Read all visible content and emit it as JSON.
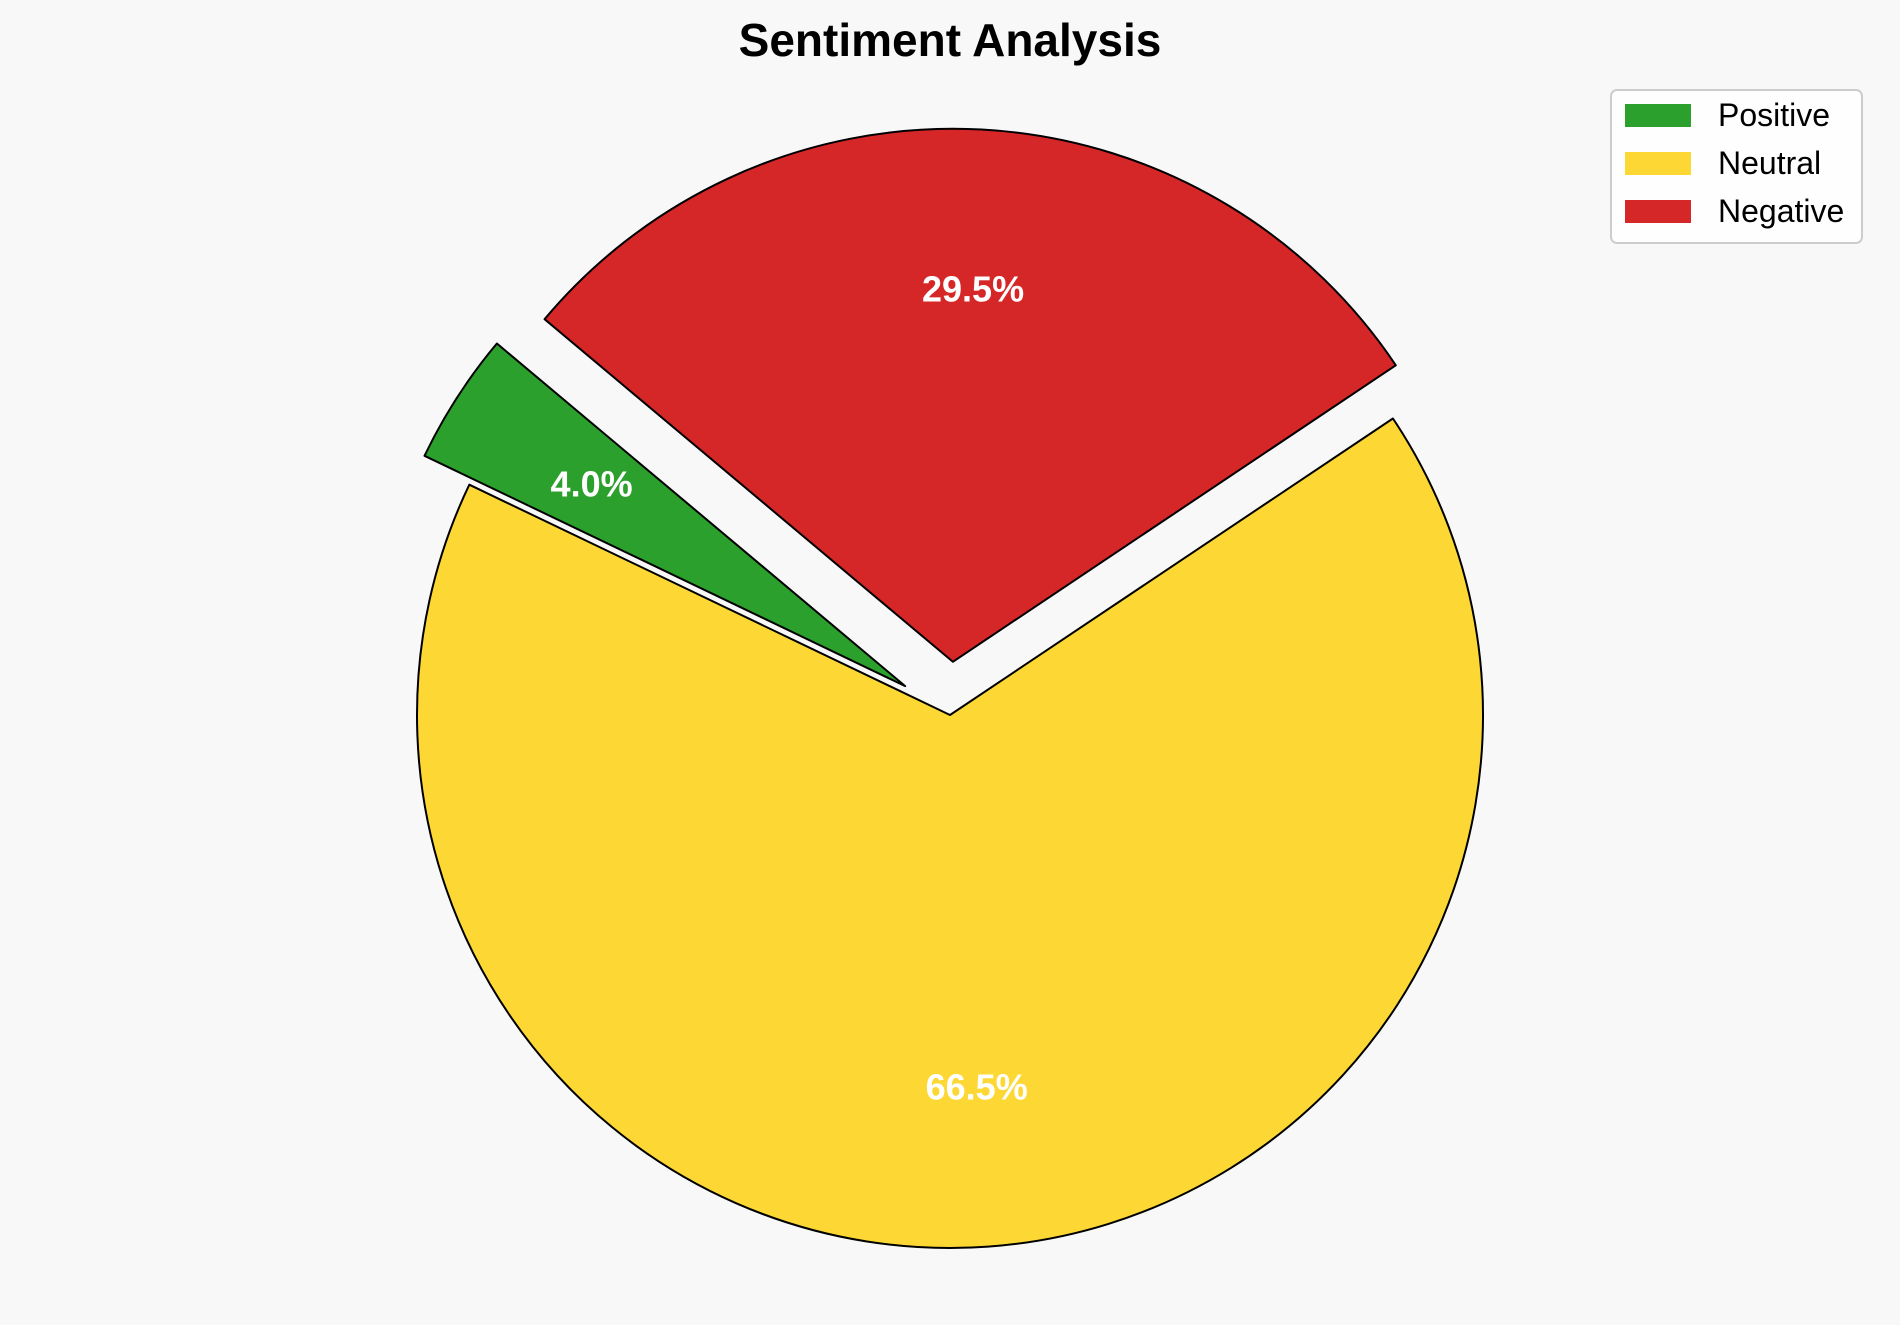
{
  "chart_data": {
    "type": "pie",
    "title": "Sentiment Analysis",
    "start_angle": 140,
    "direction": "counterclockwise",
    "legend_position": "top-right",
    "slices": [
      {
        "name": "Positive",
        "value": 4.0,
        "label": "4.0%",
        "color": "#2ca02c",
        "exploded": true
      },
      {
        "name": "Neutral",
        "value": 66.5,
        "label": "66.5%",
        "color": "#fdd835",
        "exploded": false
      },
      {
        "name": "Negative",
        "value": 29.5,
        "label": "29.5%",
        "color": "#d62728",
        "exploded": true
      }
    ],
    "edge_color": "#000000"
  }
}
